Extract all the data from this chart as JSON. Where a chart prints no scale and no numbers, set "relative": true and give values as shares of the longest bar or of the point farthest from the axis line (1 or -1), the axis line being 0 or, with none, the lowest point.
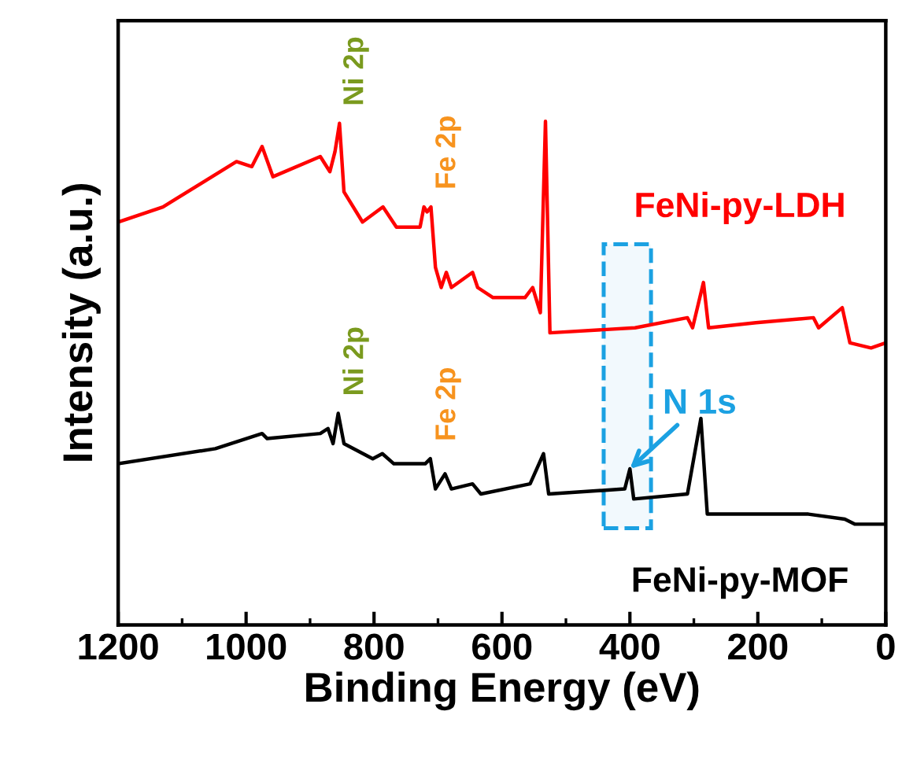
{
  "chart_data": {
    "type": "line",
    "relative": true,
    "xlabel": "Binding Energy (eV)",
    "ylabel": "Intensity (a.u.)",
    "xlim": [
      1200,
      0
    ],
    "xticks": [
      1200,
      1000,
      800,
      600,
      400,
      200,
      0
    ],
    "tick_labels": "x",
    "grid": false,
    "legend": false,
    "series": [
      {
        "name": "FeNi-py-LDH",
        "color": "#ff0000",
        "x": [
          1200,
          1130,
          1015,
          991,
          975,
          958,
          884,
          869,
          861,
          854,
          847,
          818,
          786,
          765,
          728,
          722,
          717,
          711,
          704,
          695,
          687,
          679,
          646,
          638,
          614,
          564,
          552,
          540,
          532,
          525,
          392,
          310,
          302,
          285,
          277,
          203,
          113,
          105,
          68,
          56,
          23,
          0
        ],
        "values": [
          0.8,
          0.83,
          0.92,
          0.91,
          0.95,
          0.89,
          0.93,
          0.9,
          0.94,
          0.996,
          0.86,
          0.8,
          0.83,
          0.79,
          0.79,
          0.83,
          0.82,
          0.83,
          0.71,
          0.67,
          0.7,
          0.67,
          0.7,
          0.67,
          0.65,
          0.65,
          0.67,
          0.62,
          1.0,
          0.58,
          0.59,
          0.61,
          0.59,
          0.68,
          0.59,
          0.6,
          0.61,
          0.59,
          0.63,
          0.56,
          0.55,
          0.56
        ]
      },
      {
        "name": "FeNi-py-MOF",
        "color": "#000000",
        "x": [
          1200,
          1048,
          975,
          967,
          884,
          872,
          864,
          856,
          847,
          802,
          787,
          769,
          720,
          712,
          704,
          689,
          679,
          646,
          633,
          556,
          535,
          527,
          408,
          400,
          394,
          310,
          289,
          279,
          121,
          64,
          48,
          0
        ],
        "values": [
          0.32,
          0.35,
          0.38,
          0.37,
          0.38,
          0.39,
          0.36,
          0.42,
          0.36,
          0.33,
          0.34,
          0.32,
          0.32,
          0.33,
          0.27,
          0.3,
          0.27,
          0.28,
          0.26,
          0.28,
          0.34,
          0.26,
          0.27,
          0.31,
          0.25,
          0.26,
          0.41,
          0.22,
          0.22,
          0.21,
          0.2,
          0.2
        ]
      }
    ],
    "annotations": [
      {
        "text": "Ni 2p",
        "x": 856,
        "y": 0.996
      },
      {
        "text": "Fe 2p",
        "x": 712,
        "y": 0.83
      },
      {
        "text": "Ni 2p",
        "x": 856,
        "y": 0.42
      },
      {
        "text": "Fe 2p",
        "x": 712,
        "y": 0.33
      },
      {
        "text": "N 1s",
        "x": 400,
        "y": 0.31
      }
    ],
    "bands": [
      {
        "axis": "x",
        "from": 441,
        "to": 367,
        "color": "#1ba1e2"
      }
    ]
  }
}
